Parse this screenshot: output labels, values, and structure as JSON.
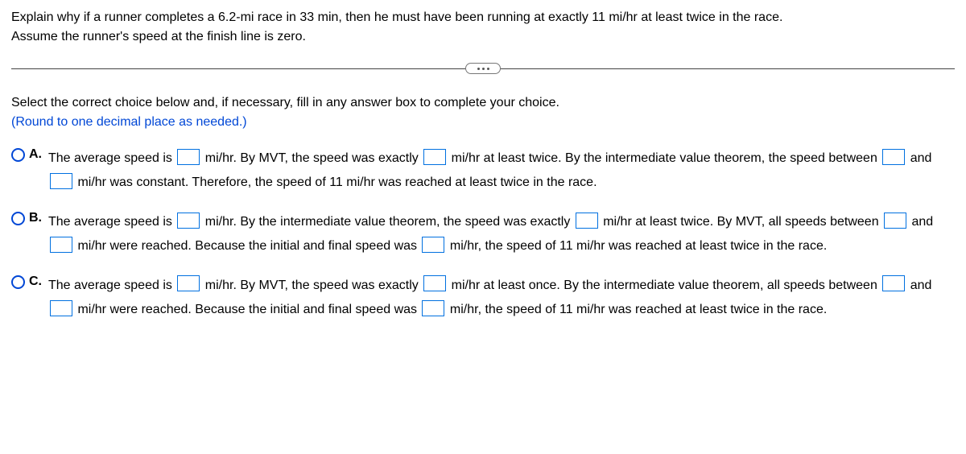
{
  "question": {
    "line1": "Explain why if a runner completes a 6.2-mi race in 33 min, then he must have been running at exactly 11 mi/hr at least twice in the race.",
    "line2": "Assume the runner's speed at the finish line is zero."
  },
  "instructions": {
    "line1": "Select the correct choice below and, if necessary, fill in any answer box to complete your choice.",
    "line2": "(Round to one decimal place as needed.)"
  },
  "choices": {
    "A": {
      "letter": "A.",
      "segments": [
        "The average speed is ",
        " mi/hr. By MVT, the speed was exactly ",
        " mi/hr at least twice. By the intermediate value theorem, the speed between ",
        " and ",
        " mi/hr was constant. Therefore, the speed of 11 mi/hr was reached at least twice in the race."
      ]
    },
    "B": {
      "letter": "B.",
      "segments": [
        "The average speed is ",
        " mi/hr. By the intermediate value theorem, the speed was exactly ",
        " mi/hr at least twice. By MVT, all speeds between ",
        " and ",
        " mi/hr were reached. Because the initial and final speed was ",
        " mi/hr, the speed of 11 mi/hr was reached at least twice in the race."
      ]
    },
    "C": {
      "letter": "C.",
      "segments": [
        "The average speed is ",
        " mi/hr. By MVT, the speed was exactly ",
        " mi/hr at least once. By the intermediate value theorem, all speeds between ",
        " and ",
        " mi/hr were reached. Because the initial and final speed was ",
        " mi/hr, the speed of 11 mi/hr was reached at least twice in the race."
      ]
    }
  }
}
